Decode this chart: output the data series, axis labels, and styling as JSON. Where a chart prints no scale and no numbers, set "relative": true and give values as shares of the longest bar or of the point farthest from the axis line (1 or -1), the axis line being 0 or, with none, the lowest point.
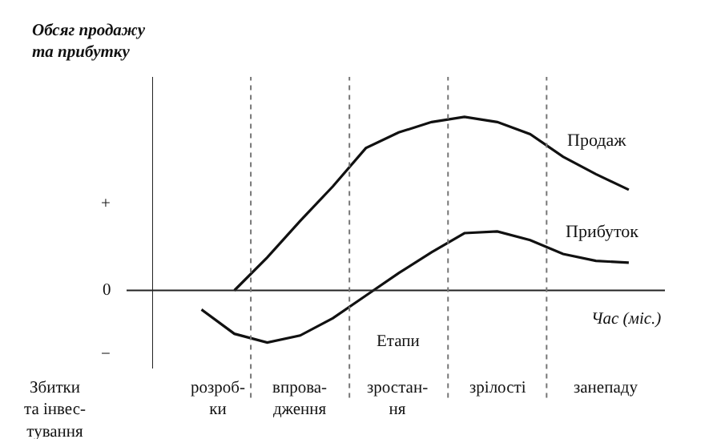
{
  "chart_data": {
    "type": "line",
    "relative": true,
    "ylabel": "Обсяг продажу\nта прибутку",
    "xlabel": "Час (міс.)",
    "categories": [
      null,
      null,
      null,
      null,
      null,
      null,
      null,
      null,
      null,
      null,
      null,
      null,
      null,
      null,
      null
    ],
    "legend": false,
    "marker": "none",
    "line_style": "solid",
    "series": [
      {
        "name": "Продаж",
        "color": "#111111",
        "values": [
          null,
          null,
          0,
          0.19,
          0.4,
          0.6,
          0.82,
          0.91,
          0.97,
          1,
          0.97,
          0.9,
          0.77,
          0.67,
          0.58
        ]
      },
      {
        "name": "Прибуток",
        "color": "#111111",
        "values": [
          null,
          -0.11,
          -0.25,
          -0.3,
          -0.26,
          -0.16,
          -0.03,
          0.1,
          0.22,
          0.33,
          0.34,
          0.29,
          0.21,
          0.17,
          0.16
        ]
      }
    ],
    "annotations": [
      "+",
      "0",
      "−",
      "Етапи",
      "Збитки\nта інвес-\nтування",
      "розроб-\nки",
      "впрова-\nдження",
      "зростан-\nня",
      "зрілості",
      "занепаду"
    ]
  }
}
